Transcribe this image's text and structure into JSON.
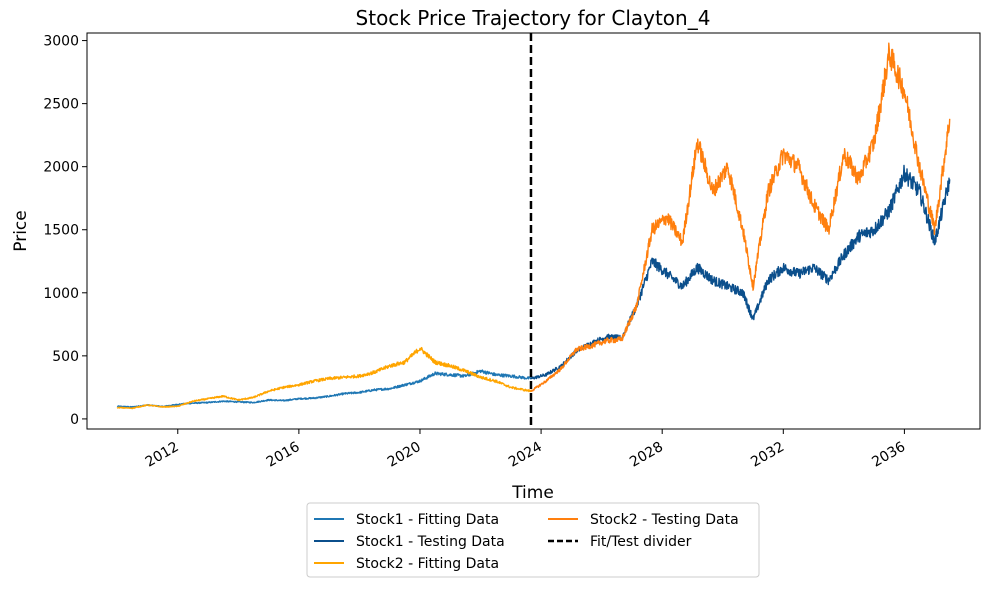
{
  "chart_data": {
    "type": "line",
    "title": "Stock Price Trajectory for Clayton_4",
    "xlabel": "Time",
    "ylabel": "Price",
    "xlim": [
      "2009-01-01",
      "2038-07-01"
    ],
    "ylim": [
      -80,
      3060
    ],
    "x_ticks": [
      "2012",
      "2016",
      "2020",
      "2024",
      "2028",
      "2032",
      "2036"
    ],
    "y_ticks": [
      0,
      500,
      1000,
      1500,
      2000,
      2500,
      3000
    ],
    "grid": false,
    "legend_position": "below plot, centered, two columns",
    "divider": {
      "date": "2023-09-01",
      "label": "Fit/Test divider",
      "color": "#000000",
      "style": "dashed"
    },
    "series": [
      {
        "name": "Stock1 - Fitting Data",
        "color": "#1f77b4",
        "x": [
          "2010-01-01",
          "2010-07-01",
          "2011-01-01",
          "2011-07-01",
          "2012-01-01",
          "2012-07-01",
          "2013-01-01",
          "2013-07-01",
          "2014-01-01",
          "2014-07-01",
          "2015-01-01",
          "2015-07-01",
          "2016-01-01",
          "2016-07-01",
          "2017-01-01",
          "2017-07-01",
          "2018-01-01",
          "2018-07-01",
          "2019-01-01",
          "2019-07-01",
          "2020-01-01",
          "2020-07-01",
          "2021-01-01",
          "2021-07-01",
          "2022-01-01",
          "2022-07-01",
          "2023-01-01",
          "2023-09-01"
        ],
        "y": [
          100,
          95,
          110,
          98,
          115,
          125,
          130,
          140,
          135,
          130,
          150,
          145,
          160,
          165,
          180,
          200,
          210,
          230,
          240,
          270,
          300,
          360,
          350,
          340,
          380,
          350,
          340,
          320
        ]
      },
      {
        "name": "Stock1 - Testing Data",
        "color": "#0b4f8c",
        "x": [
          "2023-09-01",
          "2024-03-01",
          "2024-09-01",
          "2025-03-01",
          "2025-09-01",
          "2026-03-01",
          "2026-09-01",
          "2027-03-01",
          "2027-09-01",
          "2028-03-01",
          "2028-09-01",
          "2029-03-01",
          "2029-09-01",
          "2030-03-01",
          "2030-09-01",
          "2031-01-01",
          "2031-07-01",
          "2032-01-01",
          "2032-07-01",
          "2033-01-01",
          "2033-07-01",
          "2034-01-01",
          "2034-07-01",
          "2035-01-01",
          "2035-07-01",
          "2036-01-01",
          "2036-07-01",
          "2037-01-01",
          "2037-07-01"
        ],
        "y": [
          320,
          350,
          420,
          540,
          600,
          650,
          640,
          900,
          1250,
          1150,
          1050,
          1200,
          1100,
          1050,
          1000,
          790,
          1100,
          1200,
          1150,
          1200,
          1100,
          1300,
          1450,
          1500,
          1650,
          1950,
          1800,
          1400,
          1900
        ]
      },
      {
        "name": "Stock2 - Fitting Data",
        "color": "#ffa500",
        "x": [
          "2010-01-01",
          "2010-07-01",
          "2011-01-01",
          "2011-07-01",
          "2012-01-01",
          "2012-07-01",
          "2013-01-01",
          "2013-07-01",
          "2014-01-01",
          "2014-07-01",
          "2015-01-01",
          "2015-07-01",
          "2016-01-01",
          "2016-07-01",
          "2017-01-01",
          "2017-07-01",
          "2018-01-01",
          "2018-07-01",
          "2019-01-01",
          "2019-07-01",
          "2020-01-01",
          "2020-07-01",
          "2021-01-01",
          "2021-07-01",
          "2022-01-01",
          "2022-07-01",
          "2023-01-01",
          "2023-09-01"
        ],
        "y": [
          90,
          85,
          110,
          95,
          100,
          140,
          160,
          180,
          150,
          170,
          220,
          250,
          270,
          300,
          320,
          330,
          340,
          370,
          420,
          450,
          560,
          450,
          420,
          380,
          330,
          300,
          250,
          220
        ]
      },
      {
        "name": "Stock2 - Testing Data",
        "color": "#ff7f0e",
        "x": [
          "2023-09-01",
          "2024-03-01",
          "2024-09-01",
          "2025-03-01",
          "2025-09-01",
          "2026-03-01",
          "2026-09-01",
          "2027-03-01",
          "2027-09-01",
          "2028-03-01",
          "2028-09-01",
          "2029-03-01",
          "2029-09-01",
          "2030-03-01",
          "2030-09-01",
          "2031-01-01",
          "2031-07-01",
          "2032-01-01",
          "2032-07-01",
          "2033-01-01",
          "2033-07-01",
          "2034-01-01",
          "2034-07-01",
          "2035-01-01",
          "2035-07-01",
          "2036-01-01",
          "2036-07-01",
          "2037-01-01",
          "2037-07-01"
        ],
        "y": [
          220,
          300,
          400,
          550,
          580,
          620,
          630,
          900,
          1500,
          1600,
          1400,
          2200,
          1800,
          2000,
          1500,
          1050,
          1800,
          2100,
          2000,
          1700,
          1500,
          2100,
          1900,
          2200,
          2900,
          2600,
          2000,
          1500,
          2380
        ]
      }
    ]
  }
}
